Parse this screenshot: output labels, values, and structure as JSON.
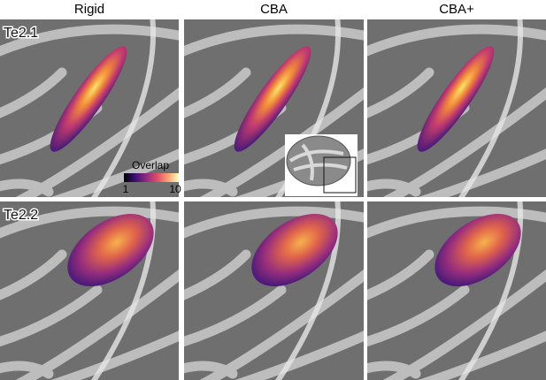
{
  "columns": [
    "Rigid",
    "CBA",
    "CBA+"
  ],
  "rows": [
    "Te2.1",
    "Te2.2"
  ],
  "colorbar": {
    "title": "Overlap",
    "ticks": [
      1,
      10
    ]
  }
}
